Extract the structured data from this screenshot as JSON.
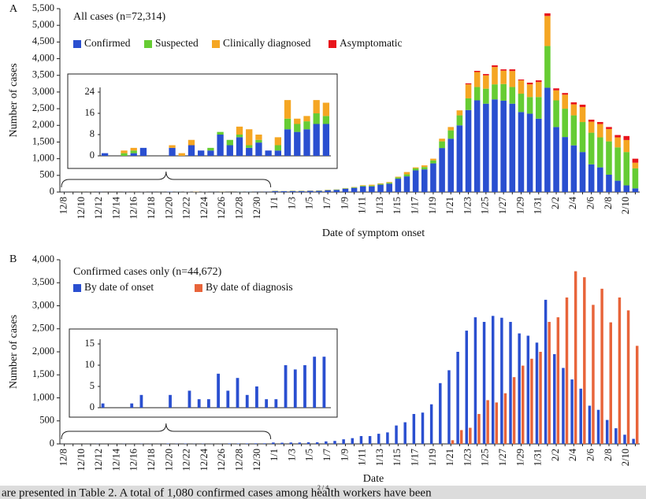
{
  "chart_data": [
    {
      "type": "bar",
      "stacked": true,
      "panel": "A",
      "title": "All cases (n=72,314)",
      "xlabel": "Date of symptom onset",
      "ylabel": "Number of cases",
      "categories": [
        "12/8",
        null,
        "12/10",
        null,
        "12/12",
        null,
        "12/14",
        null,
        "12/16",
        null,
        "12/18",
        null,
        "12/20",
        null,
        "12/22",
        null,
        "12/24",
        null,
        "12/26",
        null,
        "12/28",
        null,
        "12/30",
        null,
        "1/1",
        null,
        "1/3",
        null,
        "1/5",
        null,
        "1/7",
        null,
        "1/9",
        null,
        "1/11",
        null,
        "1/13",
        null,
        "1/15",
        null,
        "1/17",
        null,
        "1/19",
        null,
        "1/21",
        null,
        "1/23",
        null,
        "1/25",
        null,
        "1/27",
        null,
        "1/29",
        null,
        "1/31",
        null,
        "2/2",
        null,
        "2/4",
        null,
        "2/6",
        null,
        "2/8",
        null,
        "2/10",
        null
      ],
      "series": [
        {
          "name": "Confirmed",
          "color": "#2a4fd0",
          "values": [
            1,
            0,
            0,
            1,
            3,
            0,
            0,
            3,
            0,
            4,
            2,
            2,
            8,
            4,
            7,
            3,
            5,
            2,
            2,
            10,
            9,
            10,
            12,
            12,
            30,
            25,
            30,
            30,
            35,
            35,
            55,
            65,
            100,
            125,
            170,
            170,
            220,
            250,
            400,
            470,
            650,
            680,
            860,
            1320,
            1600,
            2000,
            2460,
            2750,
            2650,
            2780,
            2740,
            2650,
            2400,
            2350,
            2200,
            3130,
            1950,
            1650,
            1400,
            1200,
            830,
            740,
            520,
            340,
            200,
            110
          ]
        },
        {
          "name": "Suspected",
          "color": "#66cc33",
          "values": [
            0,
            0,
            1,
            1,
            0,
            0,
            0,
            0,
            0,
            0,
            0,
            1,
            1,
            2,
            1,
            1,
            1,
            0,
            2,
            4,
            3,
            3,
            4,
            3,
            5,
            3,
            5,
            5,
            5,
            8,
            8,
            10,
            12,
            15,
            20,
            25,
            25,
            30,
            40,
            60,
            60,
            70,
            90,
            200,
            250,
            300,
            350,
            400,
            450,
            450,
            500,
            500,
            550,
            500,
            650,
            1250,
            800,
            850,
            900,
            900,
            950,
            900,
            1000,
            1000,
            1000,
            600
          ]
        },
        {
          "name": "Clinically diagnosed",
          "color": "#f5a623",
          "values": [
            0,
            0,
            1,
            1,
            0,
            0,
            0,
            1,
            1,
            2,
            0,
            0,
            0,
            0,
            3,
            6,
            2,
            0,
            3,
            7,
            2,
            2,
            5,
            5,
            5,
            3,
            5,
            5,
            5,
            7,
            7,
            5,
            8,
            10,
            15,
            25,
            15,
            20,
            20,
            70,
            30,
            50,
            50,
            80,
            100,
            150,
            420,
            450,
            400,
            520,
            400,
            480,
            400,
            380,
            450,
            900,
            300,
            420,
            330,
            450,
            330,
            400,
            370,
            300,
            360,
            170
          ]
        },
        {
          "name": "Asymptomatic",
          "color": "#e8141b",
          "values": [
            0,
            0,
            0,
            0,
            0,
            0,
            0,
            0,
            0,
            0,
            0,
            0,
            0,
            0,
            0,
            0,
            0,
            0,
            0,
            0,
            0,
            0,
            0,
            0,
            0,
            0,
            0,
            0,
            0,
            0,
            0,
            0,
            0,
            0,
            0,
            0,
            0,
            0,
            0,
            0,
            0,
            0,
            0,
            0,
            0,
            0,
            30,
            35,
            40,
            50,
            40,
            50,
            25,
            50,
            50,
            80,
            60,
            50,
            60,
            70,
            60,
            60,
            60,
            70,
            120,
            120
          ]
        }
      ],
      "ylim": [
        0,
        5500
      ],
      "yticks": [
        0,
        500,
        {
          "value": 1000,
          "label": "1,000"
        },
        {
          "value": 1500,
          "label": "1,500"
        },
        {
          "value": 2000,
          "label": "2,000"
        },
        {
          "value": 2500,
          "label": "2,500"
        },
        {
          "value": 3000,
          "label": "3,000"
        },
        {
          "value": 3500,
          "label": "3,500"
        },
        {
          "value": 4000,
          "label": "4,000"
        },
        {
          "value": 4500,
          "label": "4,500"
        },
        {
          "value": 5000,
          "label": "5,000"
        },
        {
          "value": 5500,
          "label": "5,500"
        }
      ],
      "inset": {
        "ylim": [
          0,
          24
        ],
        "yticks": [
          0,
          8,
          16,
          24
        ]
      }
    },
    {
      "type": "bar",
      "stacked": false,
      "panel": "B",
      "title": "Confirmed cases only (n=44,672)",
      "xlabel": "Date",
      "ylabel": "Number of cases",
      "categories": [
        "12/8",
        null,
        "12/10",
        null,
        "12/12",
        null,
        "12/14",
        null,
        "12/16",
        null,
        "12/18",
        null,
        "12/20",
        null,
        "12/22",
        null,
        "12/24",
        null,
        "12/26",
        null,
        "12/28",
        null,
        "12/30",
        null,
        "1/1",
        null,
        "1/3",
        null,
        "1/5",
        null,
        "1/7",
        null,
        "1/9",
        null,
        "1/11",
        null,
        "1/13",
        null,
        "1/15",
        null,
        "1/17",
        null,
        "1/19",
        null,
        "1/21",
        null,
        "1/23",
        null,
        "1/25",
        null,
        "1/27",
        null,
        "1/29",
        null,
        "1/31",
        null,
        "2/2",
        null,
        "2/4",
        null,
        "2/6",
        null,
        "2/8",
        null,
        "2/10",
        null
      ],
      "series": [
        {
          "name": "By date of onset",
          "color": "#2a4fd0",
          "values": [
            1,
            0,
            0,
            1,
            3,
            0,
            0,
            3,
            0,
            4,
            2,
            2,
            8,
            4,
            7,
            3,
            5,
            2,
            2,
            10,
            9,
            10,
            12,
            12,
            30,
            25,
            30,
            30,
            35,
            35,
            55,
            65,
            100,
            125,
            170,
            170,
            220,
            250,
            400,
            470,
            650,
            680,
            860,
            1320,
            1600,
            2000,
            2460,
            2750,
            2650,
            2780,
            2740,
            2650,
            2400,
            2350,
            2200,
            3130,
            1950,
            1650,
            1400,
            1200,
            830,
            740,
            520,
            340,
            200,
            110
          ]
        },
        {
          "name": "By date of diagnosis",
          "color": "#e8643a",
          "values": [
            0,
            0,
            0,
            0,
            0,
            0,
            0,
            0,
            0,
            0,
            0,
            0,
            0,
            0,
            0,
            0,
            0,
            0,
            0,
            0,
            0,
            0,
            0,
            0,
            0,
            0,
            0,
            0,
            0,
            0,
            0,
            0,
            0,
            0,
            0,
            0,
            0,
            0,
            0,
            0,
            0,
            0,
            0,
            0,
            80,
            300,
            350,
            650,
            950,
            900,
            1100,
            1450,
            1700,
            1850,
            2000,
            2650,
            2750,
            3180,
            3750,
            3620,
            3020,
            3370,
            2640,
            3180,
            2900,
            2130
          ]
        }
      ],
      "ylim": [
        0,
        4000
      ],
      "yticks": [
        0,
        500,
        {
          "value": 1000,
          "label": "1,000"
        },
        {
          "value": 1500,
          "label": "1,500"
        },
        {
          "value": 2000,
          "label": "2,000"
        },
        {
          "value": 2500,
          "label": "2,500"
        },
        {
          "value": 3000,
          "label": "3,000"
        },
        {
          "value": 3500,
          "label": "3,500"
        },
        {
          "value": 4000,
          "label": "4,000"
        }
      ],
      "inset": {
        "ylim": [
          0,
          15
        ],
        "yticks": [
          0,
          5,
          10,
          15
        ]
      }
    }
  ],
  "footer": {
    "text": "are presented in Table 2. A total of 1,080 confirmed cases among health workers have been",
    "page": "2 / 4"
  }
}
